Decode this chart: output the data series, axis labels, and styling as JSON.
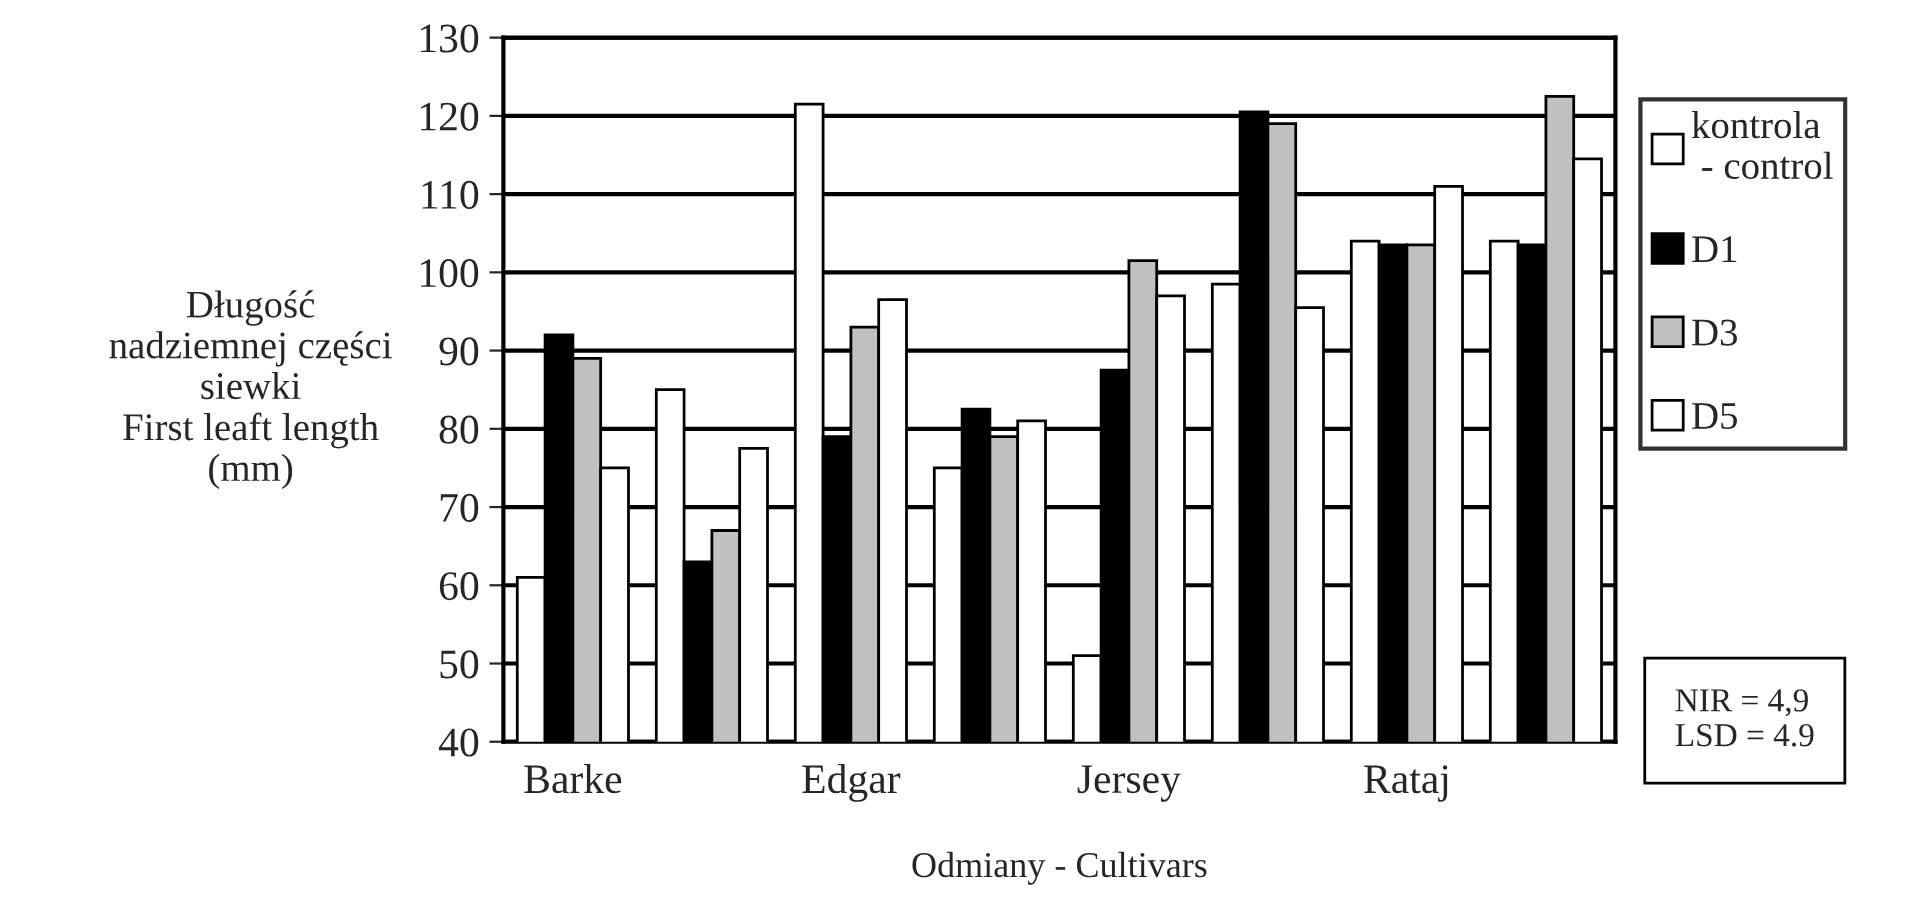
{
  "chart_data": {
    "type": "bar",
    "xlabel": "Odmiany - Cultivars",
    "ylabel": "Długość\nnadziemnej części\nsiewki\nFirst leaft length\n(mm)",
    "categories": [
      "Barke",
      null,
      "Edgar",
      null,
      "Jersey",
      null,
      "Rataj",
      null
    ],
    "series": [
      {
        "name": "kontrola\n - control",
        "color": "#ffffff",
        "values": [
          61,
          85,
          121.5,
          75,
          51,
          98.5,
          104,
          104
        ]
      },
      {
        "name": "D1",
        "color": "#000000",
        "values": [
          92,
          63,
          79,
          82.5,
          87.5,
          120.5,
          103.5,
          103.5
        ]
      },
      {
        "name": "D3",
        "color": "#c0c0c0",
        "values": [
          89,
          67,
          93,
          79,
          101.5,
          119,
          103.5,
          122.5
        ]
      },
      {
        "name": "D5",
        "color": "#ffffff",
        "values": [
          75,
          77.5,
          96.5,
          81,
          97,
          95.5,
          111,
          114.5
        ]
      }
    ],
    "ylim": [
      40,
      130
    ],
    "yticks": [
      40,
      50,
      60,
      70,
      80,
      90,
      100,
      110,
      120,
      130
    ],
    "grid": "y",
    "legend": "top right",
    "annotations": [
      "NIR = 4,9\nLSD = 4.9"
    ]
  }
}
